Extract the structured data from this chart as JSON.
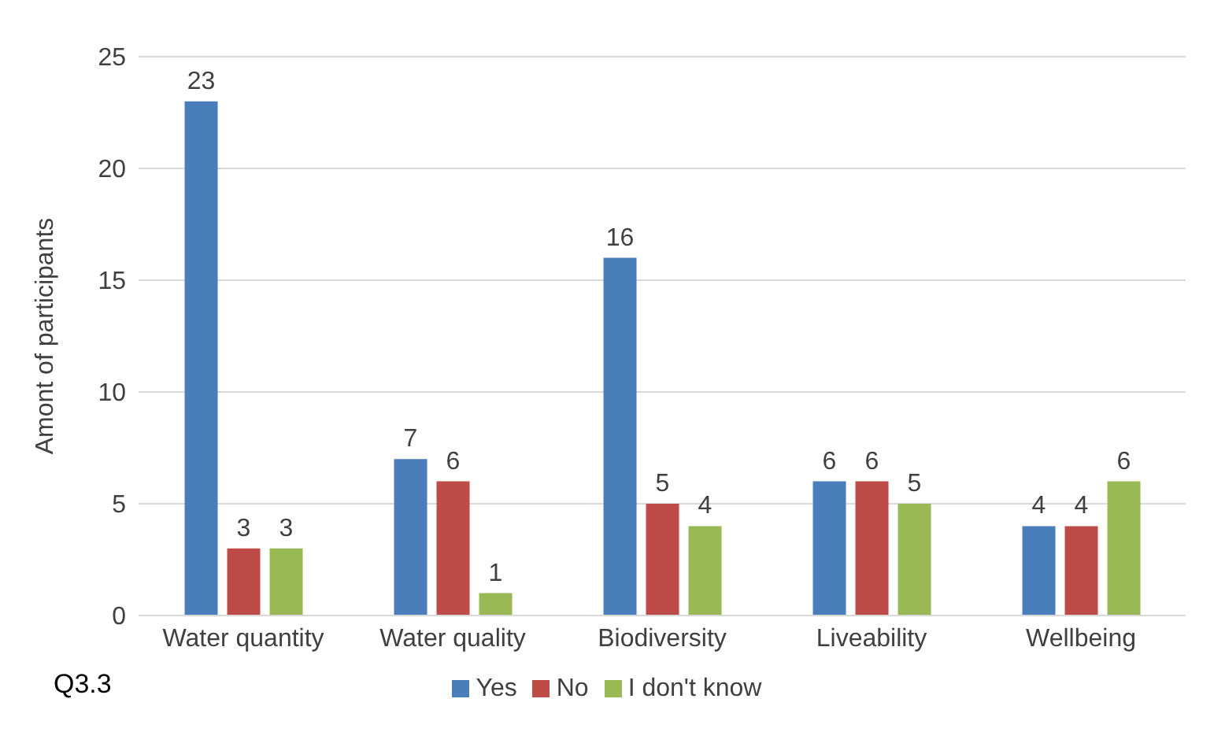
{
  "chart_data": {
    "type": "bar",
    "ylabel": "Amont of participants",
    "categories": [
      "Water quantity",
      "Water quality",
      "Biodiversity",
      "Liveability",
      "Wellbeing"
    ],
    "series": [
      {
        "name": "Yes",
        "color": "#4a7ebb",
        "values": [
          23,
          7,
          16,
          6,
          4
        ]
      },
      {
        "name": "No",
        "color": "#be4b48",
        "values": [
          3,
          6,
          5,
          6,
          4
        ]
      },
      {
        "name": "I don't know",
        "color": "#98b954",
        "values": [
          3,
          1,
          4,
          5,
          6
        ]
      }
    ],
    "ylim": [
      0,
      25
    ],
    "yticks": [
      0,
      5,
      10,
      15,
      20,
      25
    ],
    "grid": "y",
    "legend": "bottom",
    "data_labels": true,
    "annotations": [
      "Q3.3"
    ]
  }
}
